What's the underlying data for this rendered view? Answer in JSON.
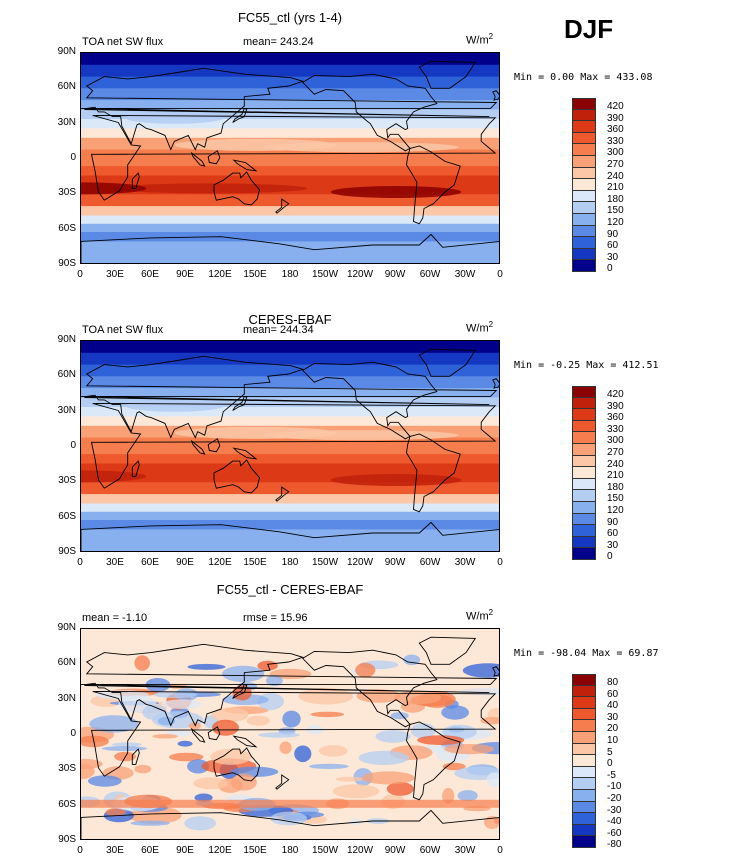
{
  "season": "DJF",
  "units": "W/m",
  "units_sup": "2",
  "panels": [
    {
      "title": "FC55_ctl (yrs 1-4)",
      "left_label": "TOA net SW flux",
      "center_label": "mean= 243.24",
      "minmax": "Min =    0.00 Max = 433.08",
      "scale": "abs"
    },
    {
      "title": "CERES-EBAF",
      "left_label": "TOA net SW flux",
      "center_label": "mean= 244.34",
      "minmax": "Min =  -0.25 Max = 412.51",
      "scale": "abs"
    },
    {
      "title": "FC55_ctl - CERES-EBAF",
      "left_label": "mean =   -1.10",
      "center_label": "rmse =   15.96",
      "minmax": "Min = -98.04 Max =  69.87",
      "scale": "diff"
    }
  ],
  "lat_ticks": [
    "90N",
    "60N",
    "30N",
    "0",
    "30S",
    "60S",
    "90S"
  ],
  "lon_ticks": [
    "0",
    "30E",
    "60E",
    "90E",
    "120E",
    "150E",
    "180",
    "150W",
    "120W",
    "90W",
    "60W",
    "30W",
    "0"
  ],
  "abs_levels": [
    "420",
    "390",
    "360",
    "330",
    "300",
    "270",
    "240",
    "210",
    "180",
    "150",
    "120",
    "90",
    "60",
    "30",
    "0"
  ],
  "diff_levels": [
    "80",
    "60",
    "40",
    "30",
    "20",
    "10",
    "5",
    "0",
    "-5",
    "-10",
    "-20",
    "-30",
    "-40",
    "-60",
    "-80"
  ],
  "colors": {
    "ramp": [
      "#8b0000",
      "#c0210b",
      "#dc3a16",
      "#ee5a2e",
      "#f67d4d",
      "#f9a077",
      "#fcc7a6",
      "#fde8d7",
      "#dbe8f7",
      "#b3cdf3",
      "#88b0ee",
      "#5a8ae6",
      "#2f61d9",
      "#1438c2",
      "#00008b"
    ]
  }
}
